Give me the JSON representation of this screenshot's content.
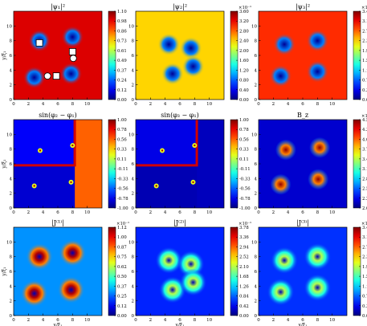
{
  "figure": {
    "axis_label_x": "x/ξ₁",
    "axis_label_y": "y/ξ₁",
    "colormap": "jet"
  },
  "chart_data": [
    {
      "type": "heatmap",
      "title": "|ψ₁|²",
      "xlabel": "",
      "ylabel": "y/ξ₁",
      "xlim": [
        0,
        12
      ],
      "ylim": [
        0,
        12
      ],
      "xticks": [
        0,
        2,
        4,
        6,
        8,
        10
      ],
      "yticks": [
        0,
        2,
        4,
        6,
        8,
        10
      ],
      "colorbar": {
        "multiplier": "",
        "ticks": [
          "0.00",
          "0.12",
          "0.24",
          "0.37",
          "0.49",
          "0.61",
          "0.73",
          "0.86",
          "0.98",
          "1.10"
        ],
        "vmin": 0,
        "vmax": 1.1
      },
      "background": 1.0,
      "vortices": [
        [
          3.5,
          8.0
        ],
        [
          8.0,
          8.5
        ],
        [
          2.8,
          3.0
        ],
        [
          7.8,
          3.5
        ]
      ],
      "squares": [
        [
          3.5,
          7.7
        ],
        [
          8.0,
          6.5
        ],
        [
          5.8,
          3.2
        ]
      ],
      "circles": [
        [
          4.6,
          3.2
        ],
        [
          8.1,
          5.6
        ]
      ]
    },
    {
      "type": "heatmap",
      "title": "|ψ₂|²",
      "xlabel": "",
      "ylabel": "",
      "xlim": [
        0,
        12
      ],
      "ylim": [
        0,
        12
      ],
      "xticks": [
        0,
        2,
        4,
        6,
        8,
        10
      ],
      "yticks": [
        0,
        2,
        4,
        6,
        8,
        10
      ],
      "colorbar": {
        "multiplier": "×10⁻¹",
        "ticks": [
          "0.00",
          "0.40",
          "0.80",
          "1.20",
          "1.60",
          "2.00",
          "2.40",
          "2.80",
          "3.20",
          "3.60"
        ],
        "vmin": 0,
        "vmax": 3.6
      },
      "background": 2.4,
      "vortices": [
        [
          4.5,
          7.5
        ],
        [
          7.5,
          7.0
        ],
        [
          5.0,
          3.5
        ],
        [
          7.8,
          4.5
        ]
      ]
    },
    {
      "type": "heatmap",
      "title": "|ψ₃|²",
      "xlabel": "",
      "ylabel": "",
      "xlim": [
        0,
        12
      ],
      "ylim": [
        0,
        12
      ],
      "xticks": [
        0,
        2,
        4,
        6,
        8,
        10
      ],
      "yticks": [
        0,
        2,
        4,
        6,
        8,
        10
      ],
      "colorbar": {
        "multiplier": "×10⁻¹",
        "ticks": [
          "0.00",
          "0.39",
          "0.78",
          "1.16",
          "1.55",
          "1.94",
          "2.33",
          "2.71",
          "3.10",
          "3.48"
        ],
        "vmin": 0,
        "vmax": 3.48
      },
      "background": 2.9,
      "vortices": [
        [
          3.5,
          7.5
        ],
        [
          8.0,
          8.0
        ],
        [
          3.0,
          3.2
        ],
        [
          8.0,
          3.8
        ]
      ]
    },
    {
      "type": "heatmap",
      "title": "sin(φ₂ − φ₁)",
      "xlabel": "",
      "ylabel": "y/ξ₁",
      "xlim": [
        0,
        12
      ],
      "ylim": [
        0,
        12
      ],
      "xticks": [
        0,
        2,
        4,
        6,
        8,
        10
      ],
      "yticks": [
        0,
        2,
        4,
        6,
        8,
        10
      ],
      "colorbar": {
        "multiplier": "",
        "ticks": [
          "-1.00",
          "-0.78",
          "-0.56",
          "-0.33",
          "-0.11",
          "0.11",
          "0.33",
          "0.56",
          "0.78",
          "1.00"
        ],
        "vmin": -1,
        "vmax": 1
      },
      "vortices": [
        [
          3.6,
          7.8
        ],
        [
          8.0,
          8.5
        ],
        [
          2.8,
          3.0
        ],
        [
          7.8,
          3.5
        ]
      ]
    },
    {
      "type": "heatmap",
      "title": "sin(φ₃ − φ₁)",
      "xlabel": "",
      "ylabel": "",
      "xlim": [
        0,
        12
      ],
      "ylim": [
        0,
        12
      ],
      "xticks": [
        0,
        2,
        4,
        6,
        8,
        10
      ],
      "yticks": [
        0,
        2,
        4,
        6,
        8,
        10
      ],
      "colorbar": {
        "multiplier": "",
        "ticks": [
          "-1.00",
          "-0.78",
          "-0.56",
          "-0.33",
          "-0.11",
          "0.11",
          "0.33",
          "0.56",
          "0.78",
          "1.00"
        ],
        "vmin": -1,
        "vmax": 1
      },
      "vortices": [
        [
          3.6,
          7.8
        ],
        [
          8.0,
          8.5
        ],
        [
          2.8,
          3.0
        ],
        [
          7.8,
          3.5
        ]
      ]
    },
    {
      "type": "heatmap",
      "title": "B_z",
      "xlabel": "",
      "ylabel": "",
      "xlim": [
        0,
        12
      ],
      "ylim": [
        0,
        12
      ],
      "xticks": [
        0,
        2,
        4,
        6,
        8,
        10
      ],
      "yticks": [
        0,
        2,
        4,
        6,
        8,
        10
      ],
      "colorbar": {
        "multiplier": "×10⁻¹",
        "ticks": [
          "2.00",
          "2.29",
          "2.58",
          "2.86",
          "3.15",
          "3.44",
          "3.73",
          "4.01",
          "4.30",
          "4.59"
        ],
        "vmin": 2.0,
        "vmax": 4.59
      },
      "background": 2.2,
      "spots": [
        [
          3.7,
          7.9
        ],
        [
          8.3,
          8.2
        ],
        [
          3.0,
          3.2
        ],
        [
          8.1,
          3.9
        ]
      ]
    },
    {
      "type": "heatmap",
      "title": "|J⁽¹⁾|",
      "xlabel": "x/ξ₁",
      "ylabel": "y/ξ₁",
      "xlim": [
        0,
        12
      ],
      "ylim": [
        0,
        12
      ],
      "xticks": [
        0,
        2,
        4,
        6,
        8,
        10
      ],
      "yticks": [
        0,
        2,
        4,
        6,
        8,
        10
      ],
      "colorbar": {
        "multiplier": "×10⁻¹",
        "ticks": [
          "0.00",
          "0.12",
          "0.25",
          "0.37",
          "0.50",
          "0.62",
          "0.75",
          "0.87",
          "1.00",
          "1.12"
        ],
        "vmin": 0,
        "vmax": 1.12
      },
      "background": 0.3,
      "rings": [
        [
          3.5,
          8.0
        ],
        [
          8.0,
          8.5
        ],
        [
          2.8,
          3.0
        ],
        [
          7.8,
          3.5
        ]
      ]
    },
    {
      "type": "heatmap",
      "title": "|J⁽²⁾|",
      "xlabel": "x/ξ₁",
      "ylabel": "",
      "xlim": [
        0,
        12
      ],
      "ylim": [
        0,
        12
      ],
      "xticks": [
        0,
        2,
        4,
        6,
        8,
        10
      ],
      "yticks": [
        0,
        2,
        4,
        6,
        8,
        10
      ],
      "colorbar": {
        "multiplier": "×10⁻¹",
        "ticks": [
          "0.00",
          "0.42",
          "0.84",
          "1.26",
          "1.68",
          "2.10",
          "2.52",
          "2.94",
          "3.36",
          "3.78"
        ],
        "vmin": 0,
        "vmax": 3.78
      },
      "background": 0.6,
      "rings": [
        [
          4.5,
          7.5
        ],
        [
          7.5,
          7.0
        ],
        [
          5.0,
          3.5
        ],
        [
          7.8,
          4.5
        ]
      ]
    },
    {
      "type": "heatmap",
      "title": "|J⁽³⁾|",
      "xlabel": "x/ξ₁",
      "ylabel": "",
      "xlim": [
        0,
        12
      ],
      "ylim": [
        0,
        12
      ],
      "xticks": [
        0,
        2,
        4,
        6,
        8,
        10
      ],
      "yticks": [
        0,
        2,
        4,
        6,
        8,
        10
      ],
      "colorbar": {
        "multiplier": "×10⁻³",
        "ticks": [
          "0.00",
          "0.39",
          "0.77",
          "1.16",
          "1.55",
          "1.93",
          "2.32",
          "2.71",
          "3.10",
          "3.48"
        ],
        "vmin": 0,
        "vmax": 3.48
      },
      "background": 0.6,
      "rings": [
        [
          3.5,
          7.5
        ],
        [
          8.0,
          8.0
        ],
        [
          3.0,
          3.2
        ],
        [
          8.0,
          3.8
        ]
      ]
    }
  ]
}
